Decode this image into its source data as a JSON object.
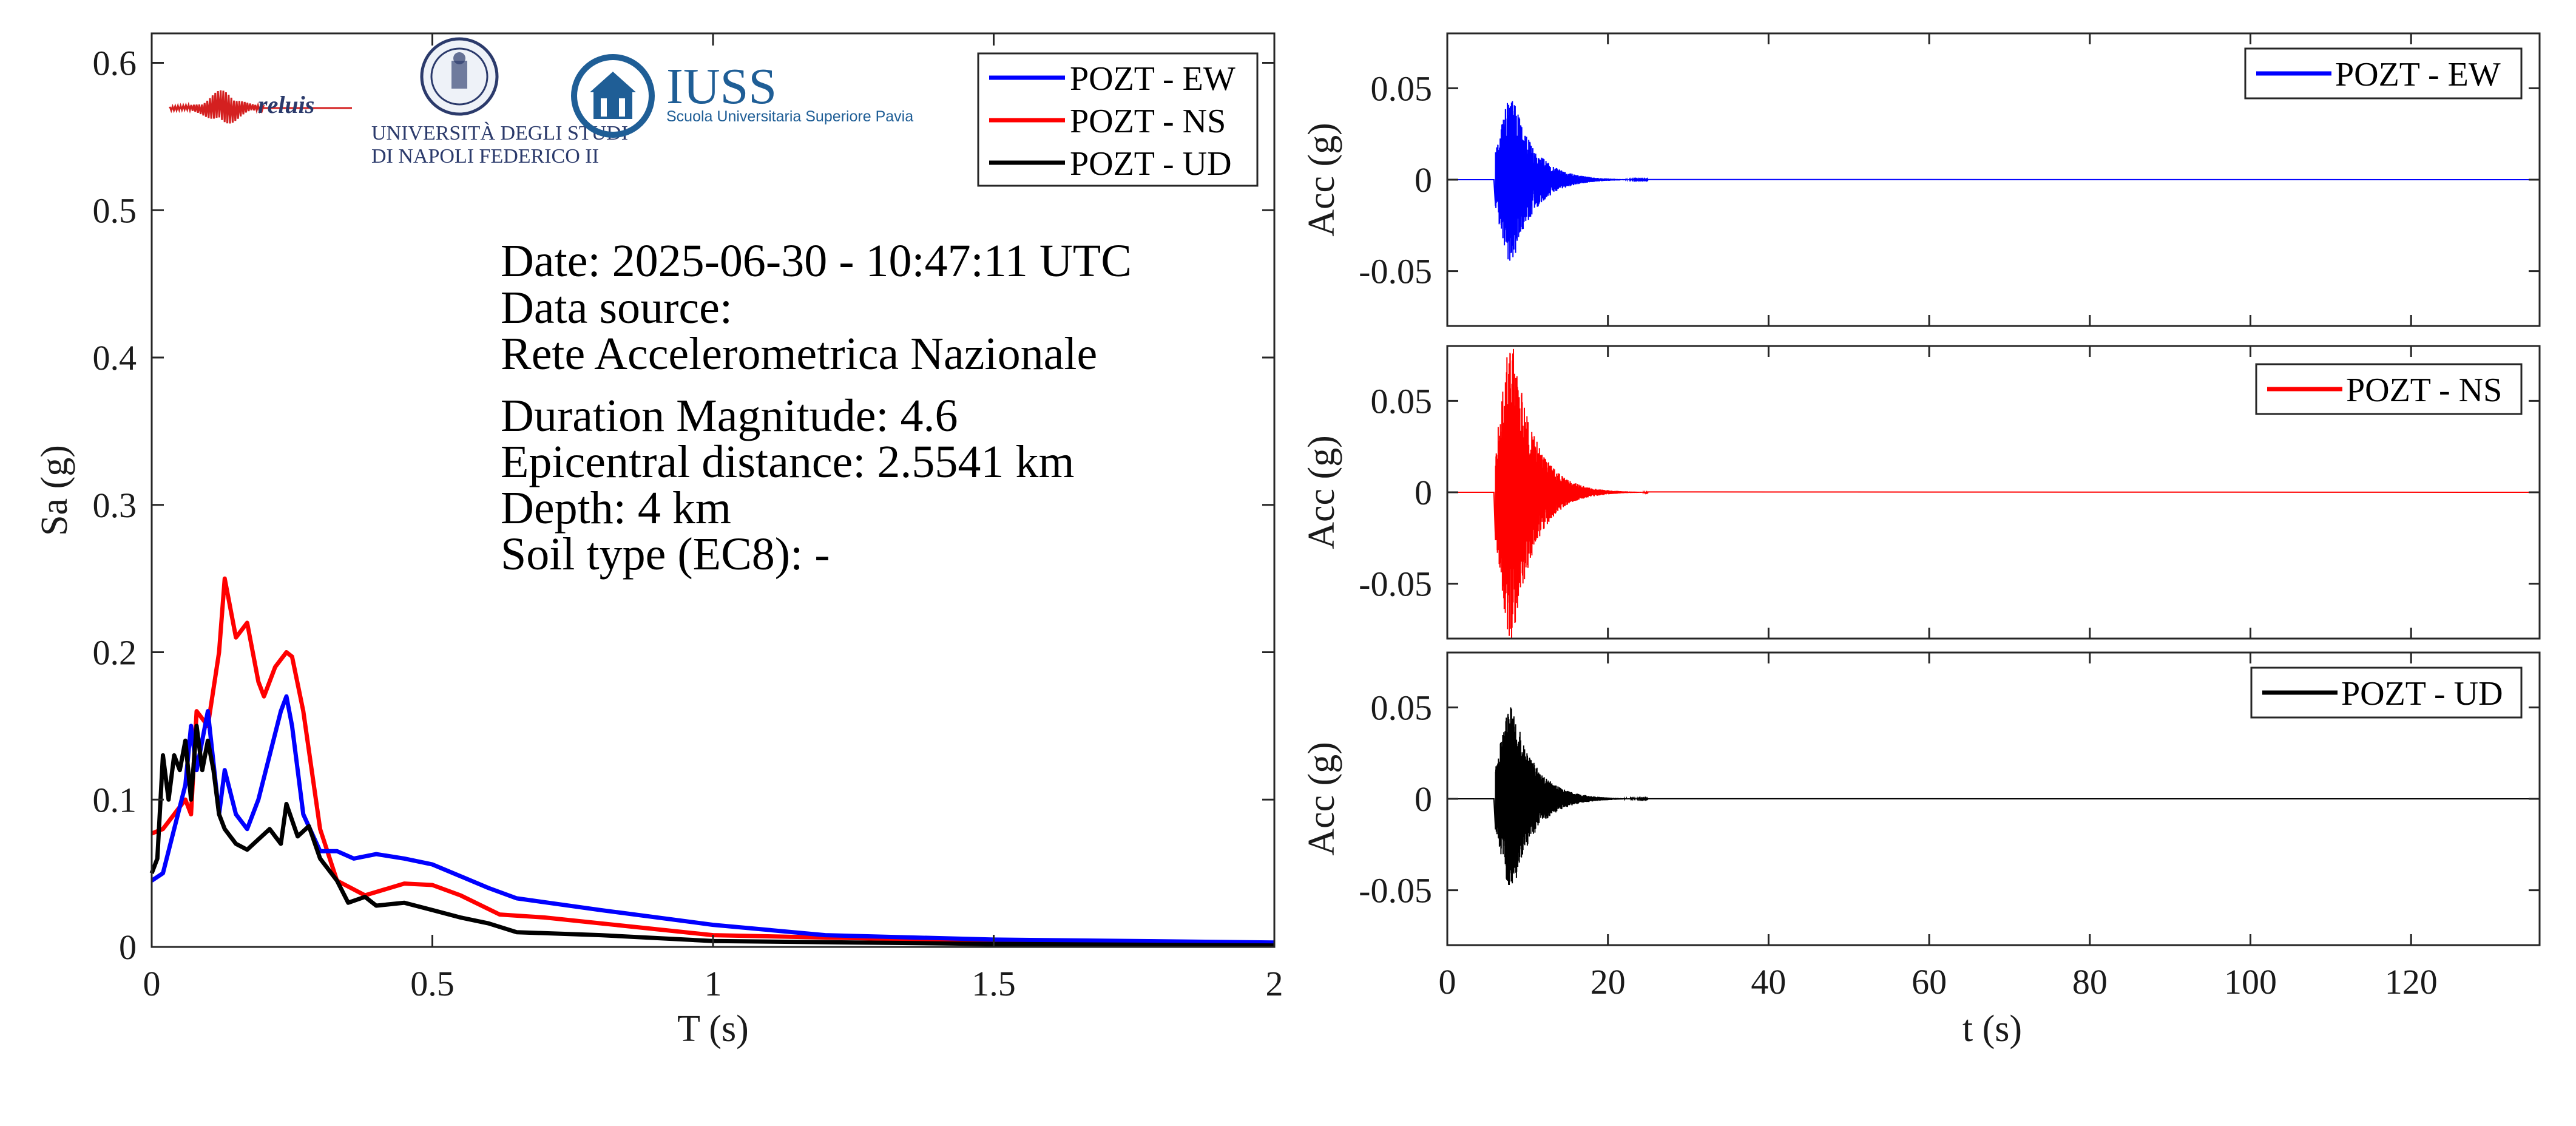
{
  "info": {
    "date": "Date: 2025-06-30 - 10:47:11 UTC",
    "source_label": "Data source:",
    "source_name": "Rete Accelerometrica Nazionale",
    "magnitude": "Duration Magnitude: 4.6",
    "distance": "Epicentral distance: 2.5541 km",
    "depth": "Depth: 4 km",
    "soil": "Soil type (EC8): -"
  },
  "logos": {
    "reluis": "reluis",
    "unina_line1": "UNIVERSITÀ DEGLI STUDI",
    "unina_line2": "DI NAPOLI FEDERICO II",
    "iuss": "IUSS",
    "iuss_sub": "Scuola Universitaria Superiore Pavia"
  },
  "colors": {
    "EW": "#0000ff",
    "NS": "#ff0000",
    "UD": "#000000",
    "axis": "#262626"
  },
  "chart_data": [
    {
      "type": "line",
      "xlabel": "T (s)",
      "ylabel": "Sa (g)",
      "xlim": [
        0,
        2
      ],
      "ylim": [
        0,
        0.62
      ],
      "xticks": [
        "0",
        "0.5",
        "1",
        "1.5",
        "2"
      ],
      "yticks": [
        "0",
        "0.1",
        "0.2",
        "0.3",
        "0.4",
        "0.5",
        "0.6"
      ],
      "legend_position": "top-right",
      "grid": false,
      "series": [
        {
          "name": "POZT - EW",
          "color": "#0000ff",
          "x": [
            0,
            0.02,
            0.04,
            0.06,
            0.07,
            0.08,
            0.1,
            0.12,
            0.13,
            0.15,
            0.17,
            0.19,
            0.21,
            0.23,
            0.24,
            0.25,
            0.27,
            0.3,
            0.33,
            0.36,
            0.4,
            0.45,
            0.5,
            0.55,
            0.6,
            0.65,
            0.8,
            1.0,
            1.2,
            1.5,
            2.0
          ],
          "y": [
            0.045,
            0.05,
            0.08,
            0.11,
            0.15,
            0.12,
            0.16,
            0.09,
            0.12,
            0.09,
            0.08,
            0.1,
            0.13,
            0.16,
            0.17,
            0.15,
            0.09,
            0.065,
            0.065,
            0.06,
            0.063,
            0.06,
            0.056,
            0.048,
            0.04,
            0.033,
            0.025,
            0.015,
            0.008,
            0.005,
            0.003
          ]
        },
        {
          "name": "POZT - NS",
          "color": "#ff0000",
          "x": [
            0,
            0.02,
            0.04,
            0.06,
            0.07,
            0.08,
            0.1,
            0.12,
            0.13,
            0.15,
            0.17,
            0.19,
            0.2,
            0.22,
            0.24,
            0.25,
            0.27,
            0.3,
            0.33,
            0.38,
            0.45,
            0.5,
            0.55,
            0.62,
            0.7,
            1.0,
            1.5,
            2.0
          ],
          "y": [
            0.077,
            0.08,
            0.09,
            0.1,
            0.09,
            0.16,
            0.15,
            0.2,
            0.25,
            0.21,
            0.22,
            0.18,
            0.17,
            0.19,
            0.2,
            0.197,
            0.16,
            0.08,
            0.045,
            0.035,
            0.043,
            0.042,
            0.035,
            0.022,
            0.02,
            0.008,
            0.004,
            0.002
          ]
        },
        {
          "name": "POZT - UD",
          "color": "#000000",
          "x": [
            0,
            0.01,
            0.02,
            0.03,
            0.04,
            0.05,
            0.06,
            0.07,
            0.08,
            0.09,
            0.1,
            0.11,
            0.12,
            0.13,
            0.15,
            0.17,
            0.19,
            0.21,
            0.23,
            0.24,
            0.26,
            0.28,
            0.3,
            0.33,
            0.35,
            0.38,
            0.4,
            0.45,
            0.5,
            0.55,
            0.6,
            0.65,
            0.8,
            1.0,
            1.5,
            2.0
          ],
          "y": [
            0.05,
            0.06,
            0.13,
            0.1,
            0.13,
            0.12,
            0.14,
            0.1,
            0.15,
            0.12,
            0.14,
            0.12,
            0.09,
            0.08,
            0.07,
            0.066,
            0.073,
            0.08,
            0.07,
            0.097,
            0.075,
            0.082,
            0.06,
            0.045,
            0.03,
            0.034,
            0.028,
            0.03,
            0.025,
            0.02,
            0.016,
            0.01,
            0.008,
            0.004,
            0.002,
            0.001
          ]
        }
      ]
    },
    {
      "type": "line",
      "xlabel": "",
      "ylabel": "Acc (g)",
      "xlim": [
        0,
        136
      ],
      "ylim": [
        -0.08,
        0.08
      ],
      "yticks": [
        "-0.05",
        "0",
        "0.05"
      ],
      "legend_position": "top-right",
      "series": [
        {
          "name": "POZT - EW",
          "color": "#0000ff",
          "peak": 0.045,
          "arrival": 6.0,
          "decay_end": 25
        }
      ]
    },
    {
      "type": "line",
      "xlabel": "",
      "ylabel": "Acc (g)",
      "xlim": [
        0,
        136
      ],
      "ylim": [
        -0.08,
        0.08
      ],
      "yticks": [
        "-0.05",
        "0",
        "0.05"
      ],
      "legend_position": "top-right",
      "series": [
        {
          "name": "POZT - NS",
          "color": "#ff0000",
          "peak": 0.08,
          "arrival": 6.0,
          "decay_end": 25
        }
      ]
    },
    {
      "type": "line",
      "xlabel": "t (s)",
      "ylabel": "Acc (g)",
      "xlim": [
        0,
        136
      ],
      "ylim": [
        -0.08,
        0.08
      ],
      "xticks": [
        "0",
        "20",
        "40",
        "60",
        "80",
        "100",
        "120"
      ],
      "yticks": [
        "-0.05",
        "0",
        "0.05"
      ],
      "legend_position": "top-right",
      "series": [
        {
          "name": "POZT - UD",
          "color": "#000000",
          "peak": 0.05,
          "arrival": 6.0,
          "decay_end": 25
        }
      ]
    }
  ]
}
